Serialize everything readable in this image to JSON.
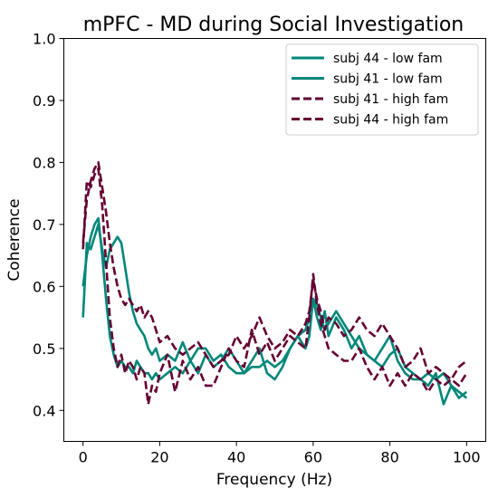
{
  "chart_data": {
    "type": "line",
    "title": "mPFC - MD during Social Investigation",
    "xlabel": "Frequency (Hz)",
    "ylabel": "Coherence",
    "xlim": [
      -5,
      105
    ],
    "ylim": [
      0.35,
      1.0
    ],
    "xticks": [
      0,
      20,
      40,
      60,
      80,
      100
    ],
    "yticks": [
      0.4,
      0.5,
      0.6,
      0.7,
      0.8,
      0.9,
      1.0
    ],
    "xtick_labels": [
      "0",
      "20",
      "40",
      "60",
      "80",
      "100"
    ],
    "ytick_labels": [
      "0.4",
      "0.5",
      "0.6",
      "0.7",
      "0.8",
      "0.9",
      "1.0"
    ],
    "grid": false,
    "legend_position": "top-right",
    "series": [
      {
        "name": "subj 44 - low fam",
        "color": "#00877a",
        "dash": "solid",
        "x": [
          0,
          1,
          2,
          3,
          4,
          5,
          6,
          7,
          8,
          9,
          10,
          11,
          12,
          13,
          14,
          15,
          16,
          17,
          18,
          19,
          20,
          22,
          24,
          26,
          28,
          30,
          32,
          34,
          36,
          38,
          40,
          42,
          44,
          46,
          48,
          50,
          52,
          54,
          56,
          58,
          59,
          60,
          61,
          62,
          63,
          64,
          66,
          68,
          70,
          72,
          74,
          76,
          78,
          80,
          82,
          84,
          86,
          88,
          90,
          92,
          94,
          96,
          98,
          100
        ],
        "y": [
          0.55,
          0.67,
          0.66,
          0.68,
          0.7,
          0.66,
          0.63,
          0.66,
          0.67,
          0.68,
          0.67,
          0.63,
          0.59,
          0.56,
          0.54,
          0.53,
          0.52,
          0.5,
          0.49,
          0.5,
          0.48,
          0.49,
          0.48,
          0.51,
          0.48,
          0.46,
          0.49,
          0.47,
          0.48,
          0.5,
          0.48,
          0.46,
          0.47,
          0.47,
          0.48,
          0.47,
          0.48,
          0.5,
          0.52,
          0.53,
          0.55,
          0.58,
          0.57,
          0.55,
          0.53,
          0.54,
          0.56,
          0.54,
          0.52,
          0.5,
          0.49,
          0.48,
          0.5,
          0.52,
          0.48,
          0.46,
          0.45,
          0.45,
          0.46,
          0.45,
          0.46,
          0.44,
          0.43,
          0.42
        ]
      },
      {
        "name": "subj 41 - low fam",
        "color": "#00877a",
        "dash": "solid",
        "x": [
          0,
          1,
          2,
          3,
          4,
          5,
          6,
          7,
          8,
          9,
          10,
          11,
          12,
          13,
          14,
          15,
          16,
          17,
          18,
          19,
          20,
          22,
          24,
          26,
          28,
          30,
          32,
          34,
          36,
          38,
          40,
          42,
          44,
          46,
          48,
          50,
          52,
          54,
          56,
          58,
          59,
          60,
          61,
          62,
          63,
          64,
          66,
          68,
          70,
          72,
          74,
          76,
          78,
          80,
          82,
          84,
          86,
          88,
          90,
          92,
          94,
          96,
          98,
          100
        ],
        "y": [
          0.6,
          0.65,
          0.68,
          0.7,
          0.71,
          0.65,
          0.58,
          0.52,
          0.49,
          0.47,
          0.48,
          0.47,
          0.47,
          0.46,
          0.48,
          0.47,
          0.46,
          0.46,
          0.45,
          0.46,
          0.45,
          0.46,
          0.47,
          0.46,
          0.48,
          0.5,
          0.5,
          0.48,
          0.49,
          0.47,
          0.46,
          0.46,
          0.48,
          0.5,
          0.46,
          0.45,
          0.47,
          0.5,
          0.52,
          0.5,
          0.52,
          0.58,
          0.55,
          0.53,
          0.56,
          0.52,
          0.55,
          0.53,
          0.5,
          0.52,
          0.49,
          0.48,
          0.47,
          0.49,
          0.5,
          0.47,
          0.46,
          0.45,
          0.44,
          0.46,
          0.41,
          0.44,
          0.42,
          0.43
        ]
      },
      {
        "name": "subj 41 - high fam",
        "color": "#650032",
        "dash": "dashed",
        "x": [
          0,
          1,
          2,
          3,
          4,
          5,
          6,
          7,
          8,
          9,
          10,
          11,
          12,
          13,
          14,
          15,
          16,
          17,
          18,
          19,
          20,
          22,
          24,
          26,
          28,
          30,
          32,
          34,
          36,
          38,
          40,
          42,
          44,
          46,
          48,
          50,
          52,
          54,
          56,
          58,
          59,
          60,
          61,
          62,
          63,
          64,
          66,
          68,
          70,
          72,
          74,
          76,
          78,
          80,
          82,
          84,
          86,
          88,
          90,
          92,
          94,
          96,
          98,
          100
        ],
        "y": [
          0.67,
          0.74,
          0.77,
          0.79,
          0.8,
          0.76,
          0.72,
          0.67,
          0.63,
          0.6,
          0.58,
          0.57,
          0.58,
          0.57,
          0.56,
          0.57,
          0.55,
          0.56,
          0.55,
          0.53,
          0.51,
          0.52,
          0.5,
          0.49,
          0.5,
          0.51,
          0.49,
          0.47,
          0.48,
          0.49,
          0.52,
          0.5,
          0.52,
          0.55,
          0.52,
          0.5,
          0.51,
          0.53,
          0.52,
          0.54,
          0.56,
          0.61,
          0.58,
          0.56,
          0.53,
          0.55,
          0.54,
          0.52,
          0.53,
          0.55,
          0.53,
          0.52,
          0.54,
          0.52,
          0.5,
          0.47,
          0.48,
          0.5,
          0.46,
          0.47,
          0.46,
          0.45,
          0.47,
          0.48
        ]
      },
      {
        "name": "subj 44 - high fam",
        "color": "#650032",
        "dash": "dashed",
        "x": [
          0,
          1,
          2,
          3,
          4,
          5,
          6,
          7,
          8,
          9,
          10,
          11,
          12,
          13,
          14,
          15,
          16,
          17,
          18,
          19,
          20,
          22,
          24,
          26,
          28,
          30,
          32,
          34,
          36,
          38,
          40,
          42,
          44,
          46,
          48,
          50,
          52,
          54,
          56,
          58,
          59,
          60,
          61,
          62,
          63,
          64,
          66,
          68,
          70,
          72,
          74,
          76,
          78,
          80,
          82,
          84,
          86,
          88,
          90,
          92,
          94,
          96,
          98,
          100
        ],
        "y": [
          0.66,
          0.77,
          0.76,
          0.78,
          0.79,
          0.73,
          0.64,
          0.55,
          0.5,
          0.47,
          0.49,
          0.46,
          0.48,
          0.47,
          0.45,
          0.47,
          0.46,
          0.41,
          0.44,
          0.43,
          0.46,
          0.49,
          0.43,
          0.48,
          0.45,
          0.47,
          0.44,
          0.44,
          0.47,
          0.5,
          0.48,
          0.47,
          0.53,
          0.49,
          0.51,
          0.48,
          0.5,
          0.52,
          0.51,
          0.5,
          0.55,
          0.62,
          0.57,
          0.54,
          0.52,
          0.5,
          0.49,
          0.48,
          0.48,
          0.5,
          0.47,
          0.45,
          0.47,
          0.44,
          0.46,
          0.44,
          0.46,
          0.45,
          0.43,
          0.45,
          0.44,
          0.45,
          0.44,
          0.46
        ]
      }
    ]
  }
}
